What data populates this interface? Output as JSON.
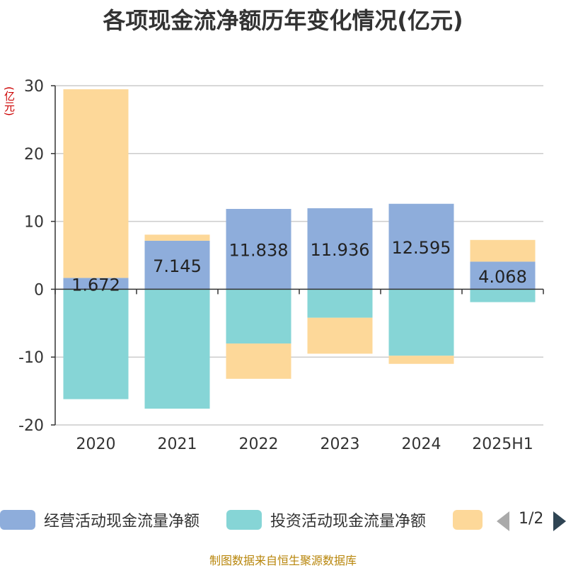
{
  "chart_data": {
    "type": "bar",
    "title": "各项现金流净额历年变化情况(亿元)",
    "ylabel": "(亿元)",
    "categories": [
      "2020",
      "2021",
      "2022",
      "2023",
      "2024",
      "2025H1"
    ],
    "ylim": [
      -20,
      30
    ],
    "yticks": [
      30,
      20,
      10,
      0,
      -10,
      -20
    ],
    "grid": true,
    "stacked": true,
    "series": [
      {
        "name": "经营活动现金流量净额",
        "color": "#8eaddb",
        "values": [
          1.672,
          7.145,
          11.838,
          11.936,
          12.595,
          4.068
        ],
        "labels": [
          "1.672",
          "7.145",
          "11.838",
          "11.936",
          "12.595",
          "4.068"
        ]
      },
      {
        "name": "投资活动现金流量净额",
        "color": "#86d5d6",
        "values": [
          -16.2,
          -17.6,
          -8.0,
          -4.2,
          -9.8,
          -1.9
        ]
      },
      {
        "name": "",
        "color": "#fdd899",
        "values": [
          27.8,
          0.9,
          -5.2,
          -5.3,
          -1.2,
          3.2
        ]
      }
    ],
    "legend_position": "bottom"
  },
  "legend": {
    "page_indicator": "1/2"
  },
  "source": "制图数据来自恒生聚源数据库"
}
